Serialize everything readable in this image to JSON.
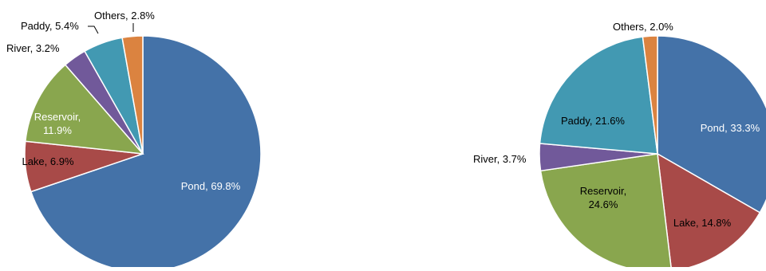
{
  "chart_data": [
    {
      "type": "pie",
      "title": "",
      "series": [
        {
          "values": [
            {
              "label": "Pond",
              "value": 69.8,
              "text": "Pond, 69.8%",
              "color": "#4472a8"
            },
            {
              "label": "Lake",
              "value": 6.9,
              "text": "Lake, 6.9%",
              "color": "#a84a48"
            },
            {
              "label": "Reservoir",
              "value": 11.9,
              "text": [
                "Reservoir,",
                "11.9%"
              ],
              "color": "#89a64e"
            },
            {
              "label": "River",
              "value": 3.2,
              "text": "River, 3.2%",
              "color": "#71599a"
            },
            {
              "label": "Paddy",
              "value": 5.4,
              "text": "Paddy, 5.4%",
              "color": "#4299b2"
            },
            {
              "label": "Others",
              "value": 2.8,
              "text": "Others, 2.8%",
              "color": "#db8340"
            }
          ]
        }
      ]
    },
    {
      "type": "pie",
      "title": "",
      "series": [
        {
          "values": [
            {
              "label": "Pond",
              "value": 33.3,
              "text": "Pond, 33.3%",
              "color": "#4472a8"
            },
            {
              "label": "Lake",
              "value": 14.8,
              "text": "Lake, 14.8%",
              "color": "#a84a48"
            },
            {
              "label": "Reservoir",
              "value": 24.6,
              "text": [
                "Reservoir,",
                "24.6%"
              ],
              "color": "#89a64e"
            },
            {
              "label": "River",
              "value": 3.7,
              "text": "River, 3.7%",
              "color": "#71599a"
            },
            {
              "label": "Paddy",
              "value": 21.6,
              "text": "Paddy, 21.6%",
              "color": "#4299b2"
            },
            {
              "label": "Others",
              "value": 2.0,
              "text": "Others, 2.0%",
              "color": "#db8340"
            }
          ]
        }
      ]
    }
  ]
}
